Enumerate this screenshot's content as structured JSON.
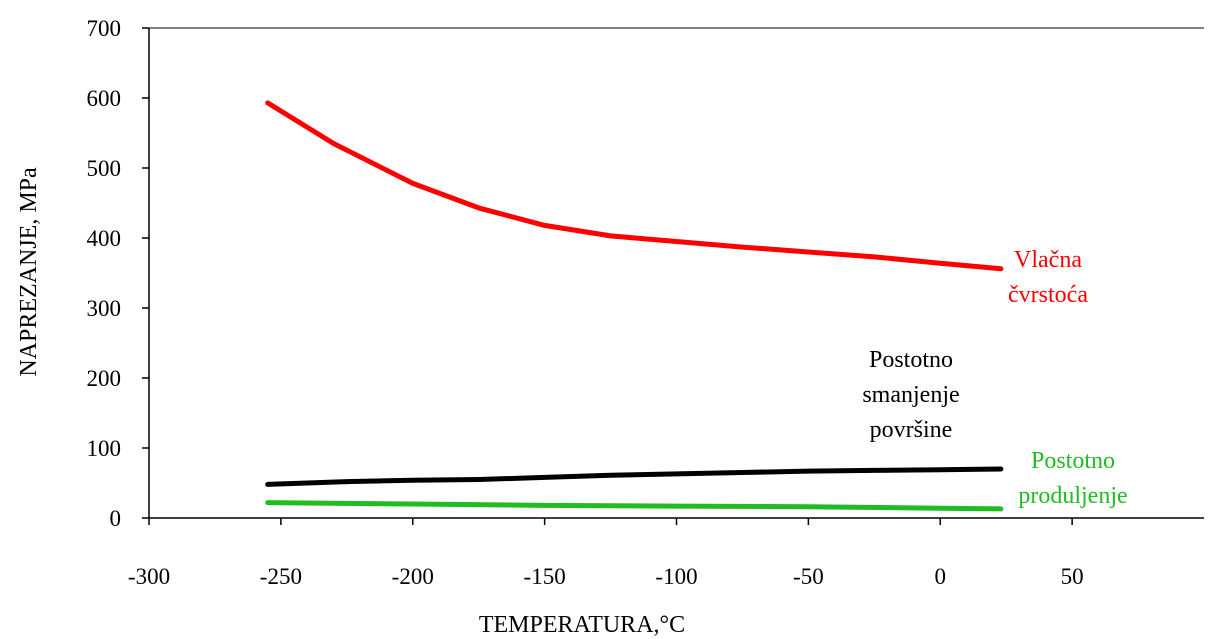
{
  "chart_data": {
    "type": "line",
    "title": "",
    "xlabel": "TEMPERATURA,°C",
    "ylabel": "NAPREZANJE, MPa",
    "xlim": [
      -300,
      100
    ],
    "ylim": [
      0,
      700
    ],
    "xticks": [
      -300,
      -250,
      -200,
      -150,
      -100,
      -50,
      0,
      50
    ],
    "yticks": [
      0,
      100,
      200,
      300,
      400,
      500,
      600,
      700
    ],
    "grid": false,
    "series": [
      {
        "name": "Vlačna čvrstoća",
        "label_lines": [
          "Vlačna",
          "čvrstoća"
        ],
        "color": "#ff0000",
        "x": [
          -255,
          -230,
          -200,
          -175,
          -150,
          -125,
          -100,
          -75,
          -50,
          -25,
          0,
          23
        ],
        "y": [
          593,
          535,
          478,
          443,
          418,
          403,
          395,
          387,
          380,
          373,
          364,
          356
        ]
      },
      {
        "name": "Postotno smanjenje površine",
        "label_lines": [
          "Postotno",
          "smanjenje",
          "površine"
        ],
        "color": "#000000",
        "x": [
          -255,
          -225,
          -200,
          -175,
          -150,
          -125,
          -100,
          -75,
          -50,
          -25,
          0,
          23
        ],
        "y": [
          48,
          52,
          54,
          55,
          58,
          61,
          63,
          65,
          67,
          68,
          69,
          70
        ]
      },
      {
        "name": "Postotno produljenje",
        "label_lines": [
          "Postotno",
          "produljenje"
        ],
        "color": "#22bb22",
        "x": [
          -255,
          -200,
          -150,
          -100,
          -50,
          0,
          23
        ],
        "y": [
          22,
          20,
          18,
          17,
          16,
          14,
          13
        ]
      }
    ]
  }
}
